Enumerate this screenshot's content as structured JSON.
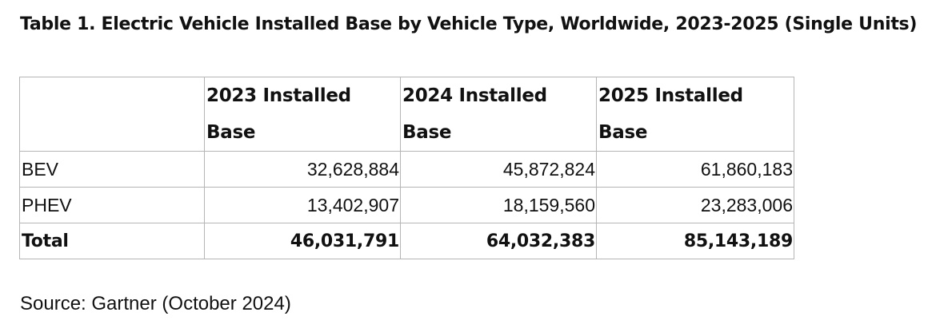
{
  "title": "Table 1. Electric Vehicle Installed Base by Vehicle Type, Worldwide, 2023-2025 (Single Units)",
  "table": {
    "headers": [
      "",
      "2023 Installed Base",
      "2024 Installed Base",
      "2025 Installed Base"
    ],
    "rows": [
      {
        "label": "BEV",
        "values": [
          "32,628,884",
          "45,872,824",
          "61,860,183"
        ]
      },
      {
        "label": "PHEV",
        "values": [
          "13,402,907",
          "18,159,560",
          "23,283,006"
        ]
      },
      {
        "label": "Total",
        "values": [
          "46,031,791",
          "64,032,383",
          "85,143,189"
        ]
      }
    ]
  },
  "source": "Source: Gartner (October 2024)"
}
